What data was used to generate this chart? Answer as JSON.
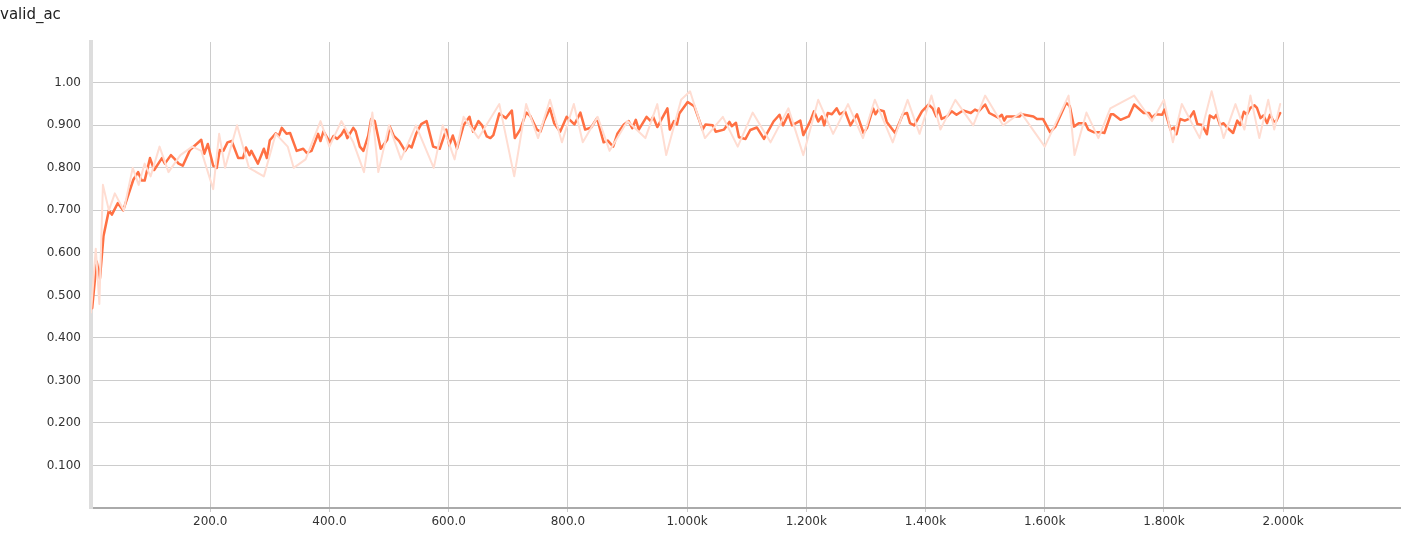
{
  "chart_data": {
    "type": "line",
    "title": "valid_ac",
    "xlim": [
      0,
      2196
    ],
    "ylim": [
      0,
      1.096
    ],
    "xticks": [
      {
        "value": 200,
        "label": "200.0"
      },
      {
        "value": 400,
        "label": "400.0"
      },
      {
        "value": 600,
        "label": "600.0"
      },
      {
        "value": 800,
        "label": "800.0"
      },
      {
        "value": 1000,
        "label": "1.000k"
      },
      {
        "value": 1200,
        "label": "1.200k"
      },
      {
        "value": 1400,
        "label": "1.400k"
      },
      {
        "value": 1600,
        "label": "1.600k"
      },
      {
        "value": 1800,
        "label": "1.800k"
      },
      {
        "value": 2000,
        "label": "2.000k"
      }
    ],
    "yticks": [
      {
        "value": 0.1,
        "label": "0.100"
      },
      {
        "value": 0.2,
        "label": "0.200"
      },
      {
        "value": 0.3,
        "label": "0.300"
      },
      {
        "value": 0.4,
        "label": "0.400"
      },
      {
        "value": 0.5,
        "label": "0.500"
      },
      {
        "value": 0.6,
        "label": "0.600"
      },
      {
        "value": 0.7,
        "label": "0.700"
      },
      {
        "value": 0.8,
        "label": "0.800"
      },
      {
        "value": 0.9,
        "label": "0.900"
      },
      {
        "value": 1.0,
        "label": "1.00"
      }
    ],
    "grid": true,
    "marker": "none",
    "line_style": "solid",
    "series": [
      {
        "color": "#ffddd2",
        "x": [
          0,
          8,
          14,
          20,
          30,
          40,
          55,
          70,
          80,
          90,
          100,
          115,
          130,
          150,
          170,
          185,
          205,
          215,
          225,
          245,
          265,
          290,
          310,
          330,
          340,
          360,
          385,
          400,
          420,
          440,
          458,
          472,
          482,
          500,
          520,
          545,
          575,
          590,
          610,
          625,
          650,
          685,
          710,
          730,
          750,
          770,
          790,
          810,
          825,
          850,
          870,
          900,
          930,
          950,
          965,
          990,
          1005,
          1030,
          1060,
          1085,
          1110,
          1140,
          1170,
          1195,
          1220,
          1245,
          1270,
          1295,
          1315,
          1345,
          1370,
          1390,
          1410,
          1425,
          1450,
          1480,
          1500,
          1530,
          1560,
          1600,
          1640,
          1650,
          1670,
          1690,
          1710,
          1750,
          1780,
          1800,
          1815,
          1830,
          1860,
          1880,
          1900,
          1920,
          1935,
          1945,
          1960,
          1975,
          1985,
          1995
        ],
        "values": [
          0.46,
          0.61,
          0.48,
          0.76,
          0.7,
          0.74,
          0.7,
          0.8,
          0.76,
          0.81,
          0.78,
          0.85,
          0.79,
          0.83,
          0.85,
          0.84,
          0.75,
          0.88,
          0.8,
          0.9,
          0.8,
          0.78,
          0.88,
          0.85,
          0.8,
          0.82,
          0.91,
          0.85,
          0.91,
          0.86,
          0.79,
          0.93,
          0.79,
          0.9,
          0.82,
          0.9,
          0.8,
          0.9,
          0.82,
          0.92,
          0.87,
          0.95,
          0.78,
          0.95,
          0.87,
          0.96,
          0.86,
          0.95,
          0.86,
          0.92,
          0.84,
          0.91,
          0.87,
          0.95,
          0.83,
          0.96,
          0.98,
          0.87,
          0.92,
          0.85,
          0.93,
          0.86,
          0.94,
          0.83,
          0.96,
          0.88,
          0.95,
          0.87,
          0.96,
          0.86,
          0.96,
          0.88,
          0.97,
          0.89,
          0.96,
          0.9,
          0.97,
          0.9,
          0.93,
          0.85,
          0.97,
          0.83,
          0.93,
          0.87,
          0.94,
          0.97,
          0.91,
          0.96,
          0.86,
          0.95,
          0.87,
          0.98,
          0.87,
          0.95,
          0.89,
          0.97,
          0.87,
          0.96,
          0.89,
          0.95
        ]
      },
      {
        "color": "#ff7043",
        "x": [
          2,
          9.5,
          15,
          21,
          30,
          35,
          45,
          54,
          71,
          79,
          85,
          90,
          99,
          106,
          119,
          124,
          134,
          141,
          147,
          154,
          166,
          185,
          190,
          196,
          205,
          211,
          216,
          222,
          229,
          236,
          247,
          255,
          260,
          266,
          269,
          280,
          290,
          295,
          300,
          310,
          315,
          320,
          328,
          334,
          345,
          356,
          362,
          370,
          381,
          385,
          390,
          401,
          407,
          413,
          420,
          425,
          430,
          440,
          444,
          451,
          457,
          465,
          470,
          476,
          486,
          497,
          501,
          508,
          517,
          527,
          533,
          538,
          546,
          554,
          563,
          574,
          585,
          596,
          601,
          607,
          614,
          625,
          635,
          641,
          650,
          656,
          664,
          670,
          675,
          685,
          696,
          706,
          711,
          720,
          730,
          737,
          748,
          754,
          760,
          770,
          777,
          787,
          798,
          811,
          821,
          829,
          839,
          849,
          860,
          867,
          876,
          883,
          894,
          902,
          908,
          914,
          919,
          932,
          939,
          943,
          950,
          967,
          971,
          978,
          983,
          987,
          1001,
          1012,
          1026,
          1031,
          1043,
          1048,
          1062,
          1071,
          1075,
          1082,
          1087,
          1098,
          1106,
          1117,
          1129,
          1145,
          1155,
          1161,
          1170,
          1176,
          1190,
          1195,
          1207,
          1213,
          1220,
          1226,
          1230,
          1236,
          1243,
          1251,
          1256,
          1265,
          1274,
          1285,
          1296,
          1302,
          1312,
          1316,
          1321,
          1330,
          1335,
          1349,
          1362,
          1369,
          1374,
          1381,
          1394,
          1405,
          1412,
          1418,
          1422,
          1427,
          1436,
          1444,
          1452,
          1463,
          1476,
          1483,
          1489,
          1500,
          1507,
          1522,
          1528,
          1532,
          1536,
          1558,
          1561,
          1581,
          1587,
          1597,
          1609,
          1618,
          1636,
          1642,
          1649,
          1657,
          1668,
          1673,
          1682,
          1693,
          1700,
          1711,
          1715,
          1727,
          1741,
          1750,
          1766,
          1775,
          1780,
          1786,
          1797,
          1801,
          1811,
          1817,
          1821,
          1827,
          1835,
          1842,
          1850,
          1856,
          1864,
          1872,
          1877,
          1884,
          1888,
          1894,
          1900,
          1906,
          1916,
          1923,
          1928,
          1934,
          1939,
          1945,
          1952,
          1956,
          1962,
          1967,
          1973,
          1978,
          1984,
          1988,
          1995
        ],
        "values": [
          0.47,
          0.58,
          0.54,
          0.64,
          0.7,
          0.69,
          0.717,
          0.7,
          0.772,
          0.79,
          0.77,
          0.77,
          0.823,
          0.795,
          0.823,
          0.81,
          0.83,
          0.82,
          0.81,
          0.805,
          0.842,
          0.866,
          0.833,
          0.856,
          0.805,
          0.8,
          0.842,
          0.84,
          0.86,
          0.863,
          0.823,
          0.823,
          0.848,
          0.83,
          0.84,
          0.81,
          0.845,
          0.823,
          0.865,
          0.881,
          0.875,
          0.894,
          0.88,
          0.882,
          0.84,
          0.845,
          0.835,
          0.84,
          0.88,
          0.863,
          0.886,
          0.86,
          0.875,
          0.868,
          0.878,
          0.89,
          0.87,
          0.894,
          0.886,
          0.85,
          0.84,
          0.875,
          0.915,
          0.91,
          0.845,
          0.866,
          0.898,
          0.875,
          0.863,
          0.84,
          0.853,
          0.848,
          0.882,
          0.903,
          0.91,
          0.85,
          0.845,
          0.89,
          0.853,
          0.876,
          0.845,
          0.9,
          0.92,
          0.885,
          0.91,
          0.9,
          0.874,
          0.87,
          0.877,
          0.928,
          0.917,
          0.935,
          0.87,
          0.89,
          0.93,
          0.922,
          0.89,
          0.885,
          0.91,
          0.94,
          0.905,
          0.885,
          0.92,
          0.902,
          0.93,
          0.89,
          0.895,
          0.917,
          0.86,
          0.864,
          0.85,
          0.88,
          0.902,
          0.91,
          0.893,
          0.913,
          0.89,
          0.92,
          0.91,
          0.92,
          0.896,
          0.94,
          0.89,
          0.91,
          0.902,
          0.928,
          0.955,
          0.945,
          0.89,
          0.902,
          0.9,
          0.885,
          0.89,
          0.908,
          0.898,
          0.906,
          0.872,
          0.868,
          0.889,
          0.895,
          0.868,
          0.909,
          0.925,
          0.9,
          0.926,
          0.9,
          0.911,
          0.877,
          0.911,
          0.933,
          0.909,
          0.921,
          0.9,
          0.929,
          0.926,
          0.94,
          0.926,
          0.933,
          0.9,
          0.926,
          0.882,
          0.894,
          0.94,
          0.926,
          0.937,
          0.933,
          0.908,
          0.882,
          0.926,
          0.929,
          0.905,
          0.9,
          0.933,
          0.949,
          0.94,
          0.921,
          0.94,
          0.915,
          0.921,
          0.933,
          0.925,
          0.935,
          0.929,
          0.937,
          0.933,
          0.949,
          0.929,
          0.918,
          0.925,
          0.911,
          0.921,
          0.921,
          0.926,
          0.921,
          0.915,
          0.915,
          0.884,
          0.897,
          0.953,
          0.945,
          0.897,
          0.905,
          0.905,
          0.89,
          0.884,
          0.884,
          0.882,
          0.926,
          0.926,
          0.913,
          0.921,
          0.949,
          0.929,
          0.929,
          0.918,
          0.926,
          0.925,
          0.937,
          0.89,
          0.895,
          0.879,
          0.915,
          0.911,
          0.915,
          0.933,
          0.903,
          0.901,
          0.879,
          0.923,
          0.917,
          0.925,
          0.901,
          0.905,
          0.895,
          0.882,
          0.911,
          0.901,
          0.932,
          0.925,
          0.941,
          0.947,
          0.941,
          0.917,
          0.923,
          0.905,
          0.925,
          0.909,
          0.909,
          0.929
        ]
      }
    ]
  }
}
